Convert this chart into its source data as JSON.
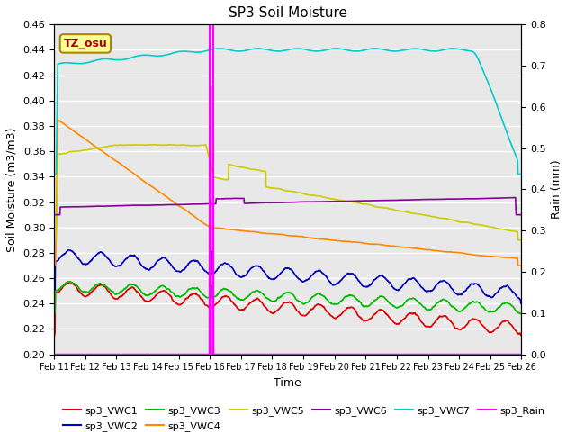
{
  "title": "SP3 Soil Moisture",
  "xlabel": "Time",
  "ylabel_left": "Soil Moisture (m3/m3)",
  "ylabel_right": "Rain (mm)",
  "ylim_left": [
    0.2,
    0.46
  ],
  "ylim_right": [
    0.0,
    0.8
  ],
  "xlim": [
    0,
    15
  ],
  "x_tick_labels": [
    "Feb 11",
    "Feb 12",
    "Feb 13",
    "Feb 14",
    "Feb 15",
    "Feb 16",
    "Feb 17",
    "Feb 18",
    "Feb 19",
    "Feb 20",
    "Feb 21",
    "Feb 22",
    "Feb 23",
    "Feb 24",
    "Feb 25",
    "Feb 26"
  ],
  "annotation_box": "TZ_osu",
  "annotation_color": "#aa0000",
  "annotation_bg": "#ffff99",
  "annotation_border": "#aa8800",
  "vline_positions": [
    5.0,
    5.1
  ],
  "vline_color": "magenta",
  "colors": {
    "sp3_VWC1": "#dd0000",
    "sp3_VWC2": "#0000bb",
    "sp3_VWC3": "#00bb00",
    "sp3_VWC4": "#ff8800",
    "sp3_VWC5": "#cccc00",
    "sp3_VWC6": "#880099",
    "sp3_VWC7": "#00cccc",
    "sp3_Rain": "#ff00ff"
  },
  "background_color": "#e8e8e8",
  "grid_color": "#ffffff"
}
